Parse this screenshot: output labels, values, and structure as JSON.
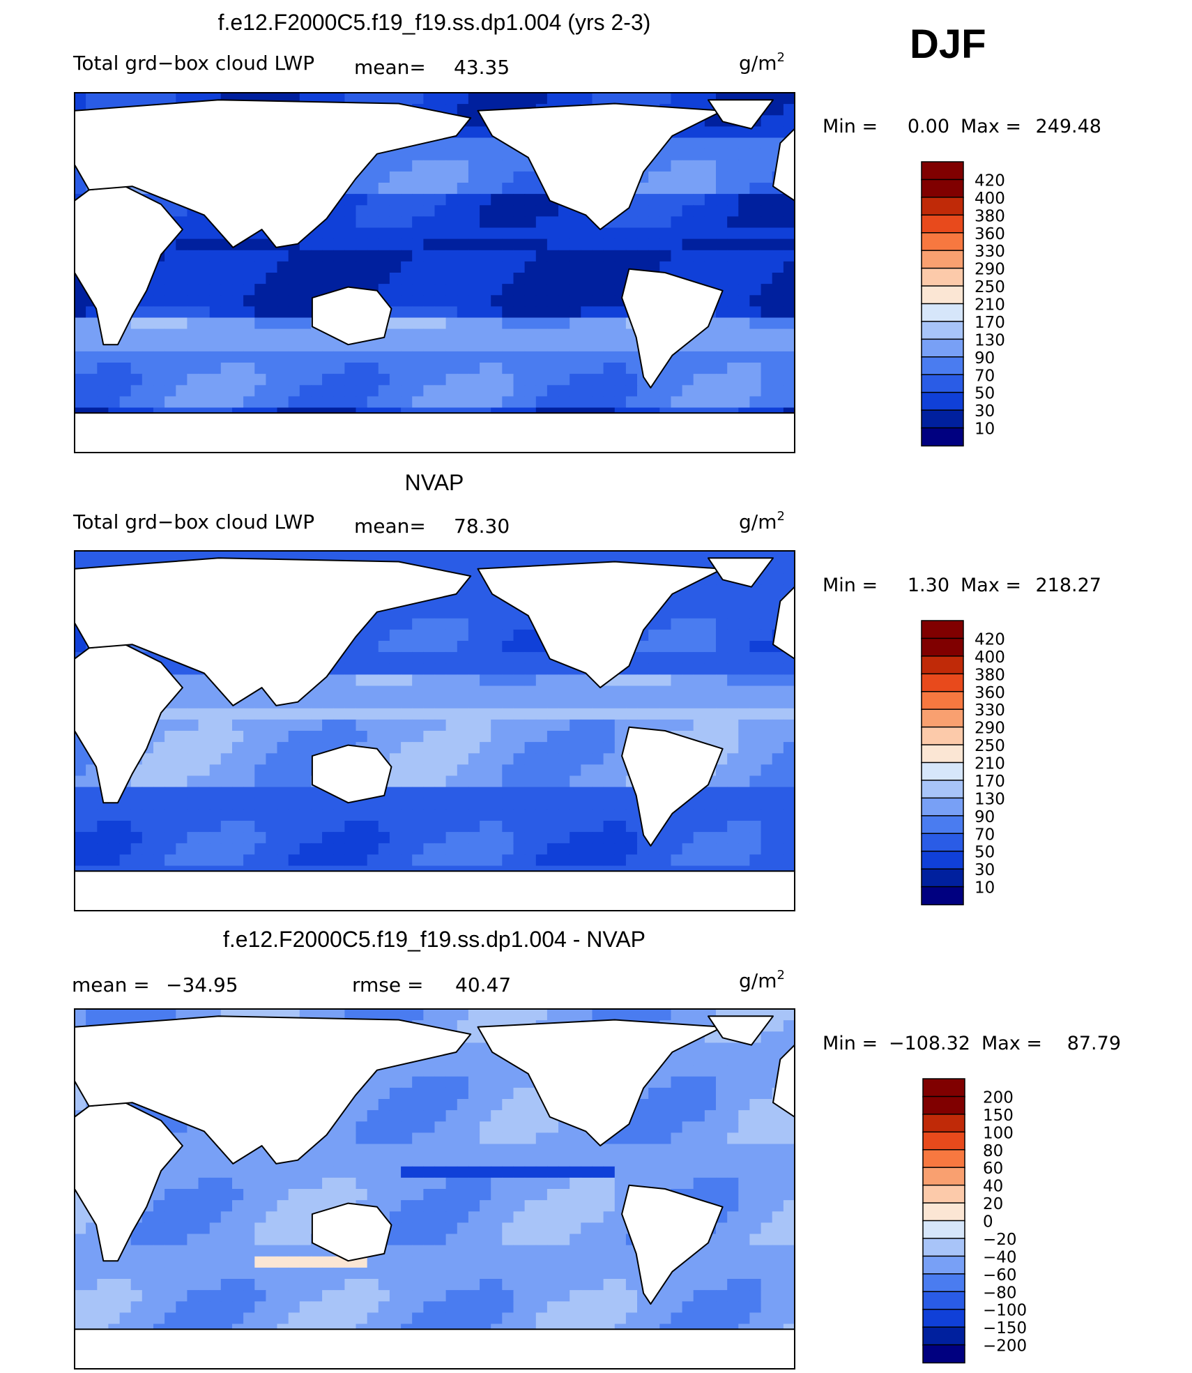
{
  "header": {
    "season": "DJF"
  },
  "palette": {
    "positive": [
      "#000080",
      "#00209e",
      "#1040d8",
      "#2a5ce6",
      "#4a7cf0",
      "#78a0f6",
      "#a8c4f8",
      "#d6e6fa",
      "#fbe6d4",
      "#fccaaa",
      "#f9a070",
      "#f77840",
      "#e84a1c",
      "#c02a08",
      "#800000"
    ],
    "difference": [
      "#000080",
      "#00209e",
      "#1040d8",
      "#2a5ce6",
      "#4a7cf0",
      "#78a0f6",
      "#a8c4f8",
      "#d6e6fa",
      "#fbe6d4",
      "#fccaaa",
      "#f9a070",
      "#f77840",
      "#e84a1c",
      "#c02a08",
      "#800000"
    ],
    "land": "#ffffff",
    "coast": "#000000"
  },
  "panels": [
    {
      "id": "model",
      "title": "f.e12.F2000C5.f19_f19.ss.dp1.004 (yrs 2-3)",
      "left_label": "Total grd−box cloud LWP",
      "stat1_label": "mean=",
      "stat1_value": "43.35",
      "units": "g/m",
      "units_sup": "2",
      "min_label": "Min =",
      "min_value": "0.00",
      "max_label": "Max =",
      "max_value": "249.48",
      "colorbar_labels": [
        "420",
        "400",
        "380",
        "360",
        "330",
        "290",
        "250",
        "210",
        "170",
        "130",
        "90",
        "70",
        "50",
        "30",
        "10"
      ],
      "field_style": "model"
    },
    {
      "id": "obs",
      "title": "NVAP",
      "left_label": "Total grd−box cloud LWP",
      "stat1_label": "mean=",
      "stat1_value": "78.30",
      "units": "g/m",
      "units_sup": "2",
      "min_label": "Min =",
      "min_value": "1.30",
      "max_label": "Max =",
      "max_value": "218.27",
      "colorbar_labels": [
        "420",
        "400",
        "380",
        "360",
        "330",
        "290",
        "250",
        "210",
        "170",
        "130",
        "90",
        "70",
        "50",
        "30",
        "10"
      ],
      "field_style": "obs"
    },
    {
      "id": "diff",
      "title": "f.e12.F2000C5.f19_f19.ss.dp1.004 - NVAP",
      "left_label": "mean =",
      "left_value": "−34.95",
      "stat1_label": "rmse =",
      "stat1_value": "40.47",
      "units": "g/m",
      "units_sup": "2",
      "min_label": "Min =",
      "min_value": "−108.32",
      "max_label": "Max =",
      "max_value": "87.79",
      "colorbar_labels": [
        "200",
        "150",
        "100",
        "80",
        "60",
        "40",
        "20",
        "0",
        "−20",
        "−40",
        "−60",
        "−80",
        "−100",
        "−150",
        "−200"
      ],
      "field_style": "diff"
    }
  ]
}
